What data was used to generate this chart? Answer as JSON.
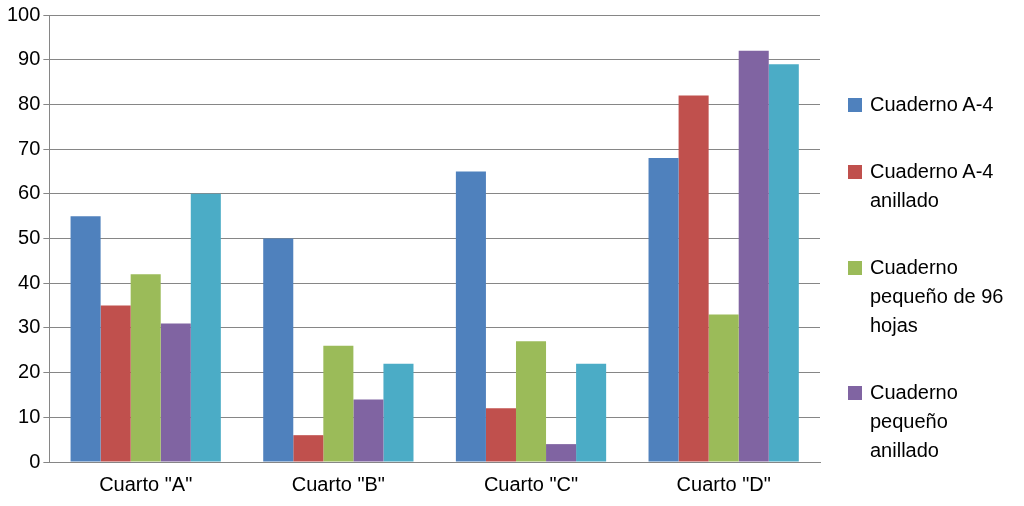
{
  "chart_data": {
    "type": "bar",
    "categories": [
      "Cuarto \"A\"",
      "Cuarto \"B\"",
      "Cuarto \"C\"",
      "Cuarto \"D\""
    ],
    "series": [
      {
        "name": "Cuaderno A-4",
        "color": "#4f81bd",
        "values": [
          55,
          50,
          65,
          68
        ]
      },
      {
        "name": "Cuaderno A-4 anillado",
        "color": "#c0504d",
        "values": [
          35,
          6,
          12,
          82
        ]
      },
      {
        "name": "Cuaderno pequeño de 96 hojas",
        "color": "#9bbb59",
        "values": [
          42,
          26,
          27,
          33
        ]
      },
      {
        "name": "Cuaderno pequeño anillado",
        "color": "#8064a2",
        "values": [
          31,
          14,
          4,
          92
        ]
      },
      {
        "color": "#4bacc6",
        "values": [
          60,
          22,
          22,
          89
        ]
      }
    ],
    "ylim": [
      0,
      100
    ],
    "yticks": [
      0,
      10,
      20,
      30,
      40,
      50,
      60,
      70,
      80,
      90,
      100
    ],
    "grid": "y",
    "legend": "right"
  }
}
